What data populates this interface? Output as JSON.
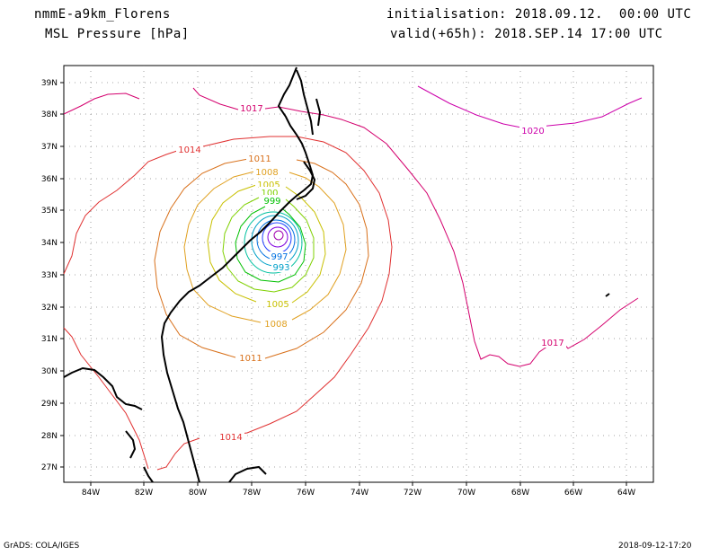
{
  "header": {
    "model": "nmmE-a9km_Florens",
    "field": "MSL Pressure [hPa]",
    "init": "initialisation: 2018.09.12.  00:00 UTC",
    "valid": "valid(+65h): 2018.SEP.14 17:00 UTC"
  },
  "footer": {
    "left": "GrADS: COLA/IGES",
    "right": "2018-09-12-17:20"
  },
  "map": {
    "lon_labels": [
      "84W",
      "82W",
      "80W",
      "78W",
      "76W",
      "74W",
      "72W",
      "70W",
      "68W",
      "66W",
      "64W"
    ],
    "lat_labels": [
      "39N",
      "38N",
      "37N",
      "36N",
      "35N",
      "34N",
      "33N",
      "32N",
      "31N",
      "30N",
      "29N",
      "28N",
      "27N"
    ],
    "contour_labels": {
      "c1017_north": "1017",
      "c1014_north": "1014",
      "c1011_north": "1011",
      "c1008_north": "1008",
      "c1005_north": "1005",
      "c1002_north": "100",
      "c999_north": "999",
      "c997": "997",
      "c993": "993",
      "c1005_south": "1005",
      "c1008_south": "1008",
      "c1011_south": "1011",
      "c1014_south": "1014",
      "c1020": "1020",
      "c1017_east": "1017"
    },
    "colors": {
      "c1020": "#cc00aa",
      "c1017": "#d4006e",
      "c1014": "#e03030",
      "c1011": "#d8701a",
      "c1008": "#e0a020",
      "c1005": "#c8c000",
      "c1002": "#7fd000",
      "c999": "#00c000",
      "c996": "#00c0a0",
      "c993": "#00a0c8",
      "c990": "#0070e0",
      "c987": "#2040ff",
      "c984": "#8000e0",
      "c981": "#a000b0"
    }
  }
}
